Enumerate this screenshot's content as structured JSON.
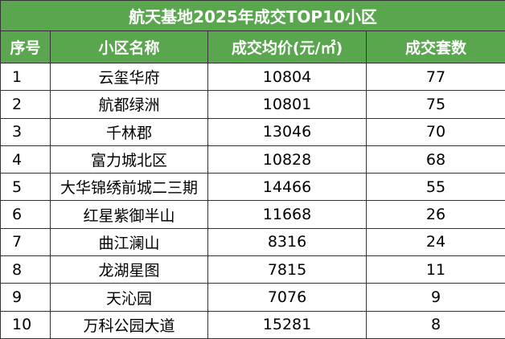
{
  "header": {
    "title": "航天基地2025年成交TOP10小区"
  },
  "table": {
    "columns": [
      "序号",
      "小区名称",
      "成交均价(元/㎡)",
      "成交套数"
    ],
    "rows": [
      [
        "1",
        "云玺华府",
        "10804",
        "77"
      ],
      [
        "2",
        "航都绿洲",
        "10801",
        "75"
      ],
      [
        "3",
        "千林郡",
        "13046",
        "70"
      ],
      [
        "4",
        "富力城北区",
        "10828",
        "68"
      ],
      [
        "5",
        "大华锦绣前城二三期",
        "14466",
        "55"
      ],
      [
        "6",
        "红星紫御半山",
        "11668",
        "26"
      ],
      [
        "7",
        "曲江澜山",
        "8316",
        "24"
      ],
      [
        "8",
        "龙湖星图",
        "7815",
        "11"
      ],
      [
        "9",
        "天沁园",
        "7076",
        "9"
      ],
      [
        "10",
        "万科公园大道",
        "15281",
        "8"
      ]
    ]
  }
}
